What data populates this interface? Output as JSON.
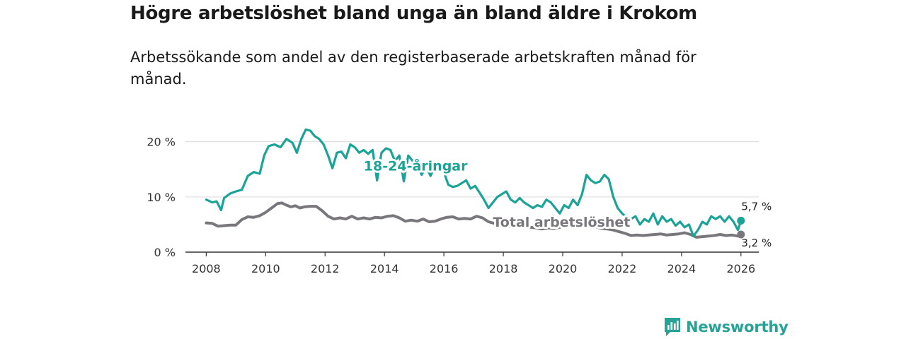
{
  "title": "Högre arbetslöshet bland unga än bland äldre i Krokom",
  "subtitle": "Arbetssökande som andel av den registerbaserade arbetskraften månad för månad.",
  "brand": {
    "name": "Newsworthy",
    "logo_icon": "newsworthy-logo-icon"
  },
  "colors": {
    "youth": "#1aa397",
    "total": "#7a777c",
    "grid": "#d9d9d9",
    "axis": "#333333"
  },
  "chart_data": {
    "type": "line",
    "title": "Högre arbetslöshet bland unga än bland äldre i Krokom",
    "xlabel": "",
    "ylabel": "",
    "xlim": [
      2007.3,
      2026.6
    ],
    "ylim": [
      0,
      22
    ],
    "x_ticks": [
      2008,
      2010,
      2012,
      2014,
      2016,
      2018,
      2020,
      2022,
      2024,
      2026
    ],
    "x_tick_labels": [
      "2008",
      "2010",
      "2012",
      "2014",
      "2016",
      "2018",
      "2020",
      "2022",
      "2024",
      "2026"
    ],
    "y_ticks": [
      0,
      10,
      20
    ],
    "y_tick_labels": [
      "0 %",
      "10 %",
      "20 %"
    ],
    "grid": true,
    "series": [
      {
        "name": "18-24-åringar",
        "label": "18-24-åringar",
        "end_label": "5,7 %",
        "points": [
          [
            2008.0,
            9.5
          ],
          [
            2008.2,
            9.0
          ],
          [
            2008.35,
            9.2
          ],
          [
            2008.5,
            7.6
          ],
          [
            2008.6,
            9.8
          ],
          [
            2008.8,
            10.6
          ],
          [
            2009.0,
            11.0
          ],
          [
            2009.2,
            11.3
          ],
          [
            2009.4,
            13.8
          ],
          [
            2009.6,
            14.5
          ],
          [
            2009.8,
            14.2
          ],
          [
            2009.95,
            17.5
          ],
          [
            2010.1,
            19.2
          ],
          [
            2010.3,
            19.5
          ],
          [
            2010.5,
            19.0
          ],
          [
            2010.7,
            20.5
          ],
          [
            2010.9,
            19.8
          ],
          [
            2011.05,
            18.0
          ],
          [
            2011.2,
            20.5
          ],
          [
            2011.35,
            22.2
          ],
          [
            2011.5,
            22.0
          ],
          [
            2011.65,
            21.0
          ],
          [
            2011.8,
            20.5
          ],
          [
            2011.95,
            19.5
          ],
          [
            2012.1,
            17.5
          ],
          [
            2012.25,
            15.2
          ],
          [
            2012.4,
            18.0
          ],
          [
            2012.55,
            18.2
          ],
          [
            2012.7,
            17.0
          ],
          [
            2012.85,
            19.5
          ],
          [
            2013.0,
            19.0
          ],
          [
            2013.15,
            18.0
          ],
          [
            2013.3,
            18.5
          ],
          [
            2013.45,
            17.8
          ],
          [
            2013.6,
            18.5
          ],
          [
            2013.75,
            13.0
          ],
          [
            2013.9,
            18.0
          ],
          [
            2014.05,
            18.8
          ],
          [
            2014.2,
            18.5
          ],
          [
            2014.35,
            16.5
          ],
          [
            2014.5,
            17.5
          ],
          [
            2014.65,
            12.8
          ],
          [
            2014.8,
            17.5
          ],
          [
            2014.95,
            16.5
          ],
          [
            2015.1,
            16.0
          ],
          [
            2015.25,
            14.0
          ],
          [
            2015.4,
            15.5
          ],
          [
            2015.55,
            13.8
          ],
          [
            2015.7,
            15.8
          ],
          [
            2015.85,
            15.0
          ],
          [
            2016.0,
            14.5
          ],
          [
            2016.15,
            12.2
          ],
          [
            2016.3,
            11.8
          ],
          [
            2016.45,
            12.0
          ],
          [
            2016.6,
            12.5
          ],
          [
            2016.75,
            13.0
          ],
          [
            2016.9,
            11.5
          ],
          [
            2017.05,
            12.0
          ],
          [
            2017.2,
            10.8
          ],
          [
            2017.35,
            9.5
          ],
          [
            2017.5,
            8.0
          ],
          [
            2017.65,
            9.0
          ],
          [
            2017.8,
            10.0
          ],
          [
            2017.95,
            10.5
          ],
          [
            2018.1,
            11.0
          ],
          [
            2018.25,
            9.5
          ],
          [
            2018.4,
            9.0
          ],
          [
            2018.55,
            9.8
          ],
          [
            2018.7,
            9.0
          ],
          [
            2018.85,
            8.5
          ],
          [
            2019.0,
            8.0
          ],
          [
            2019.15,
            8.5
          ],
          [
            2019.3,
            8.2
          ],
          [
            2019.45,
            9.5
          ],
          [
            2019.6,
            9.0
          ],
          [
            2019.75,
            8.0
          ],
          [
            2019.9,
            7.0
          ],
          [
            2020.05,
            8.5
          ],
          [
            2020.2,
            8.0
          ],
          [
            2020.35,
            9.5
          ],
          [
            2020.5,
            8.5
          ],
          [
            2020.65,
            10.5
          ],
          [
            2020.8,
            14.0
          ],
          [
            2020.95,
            13.0
          ],
          [
            2021.1,
            12.5
          ],
          [
            2021.25,
            12.8
          ],
          [
            2021.4,
            14.0
          ],
          [
            2021.55,
            13.2
          ],
          [
            2021.7,
            10.0
          ],
          [
            2021.85,
            8.0
          ],
          [
            2022.0,
            7.0
          ],
          [
            2022.15,
            6.3
          ],
          [
            2022.3,
            6.0
          ],
          [
            2022.45,
            6.5
          ],
          [
            2022.6,
            5.0
          ],
          [
            2022.75,
            6.0
          ],
          [
            2022.9,
            5.5
          ],
          [
            2023.05,
            7.0
          ],
          [
            2023.2,
            5.0
          ],
          [
            2023.35,
            6.5
          ],
          [
            2023.5,
            5.5
          ],
          [
            2023.65,
            6.0
          ],
          [
            2023.8,
            4.8
          ],
          [
            2023.95,
            5.5
          ],
          [
            2024.1,
            4.5
          ],
          [
            2024.25,
            5.0
          ],
          [
            2024.4,
            2.9
          ],
          [
            2024.55,
            4.0
          ],
          [
            2024.7,
            5.5
          ],
          [
            2024.85,
            5.0
          ],
          [
            2025.0,
            6.5
          ],
          [
            2025.15,
            6.0
          ],
          [
            2025.3,
            6.5
          ],
          [
            2025.45,
            5.5
          ],
          [
            2025.6,
            6.5
          ],
          [
            2025.75,
            5.5
          ],
          [
            2025.9,
            4.0
          ],
          [
            2026.0,
            5.7
          ]
        ]
      },
      {
        "name": "Total arbetslöshet",
        "label": "Total arbetslöshet",
        "end_label": "3,2 %",
        "points": [
          [
            2008.0,
            5.3
          ],
          [
            2008.2,
            5.2
          ],
          [
            2008.4,
            4.7
          ],
          [
            2008.6,
            4.8
          ],
          [
            2008.8,
            4.9
          ],
          [
            2009.0,
            4.9
          ],
          [
            2009.2,
            5.9
          ],
          [
            2009.4,
            6.4
          ],
          [
            2009.6,
            6.3
          ],
          [
            2009.8,
            6.6
          ],
          [
            2010.0,
            7.2
          ],
          [
            2010.2,
            8.0
          ],
          [
            2010.4,
            8.8
          ],
          [
            2010.55,
            8.9
          ],
          [
            2010.7,
            8.5
          ],
          [
            2010.85,
            8.2
          ],
          [
            2011.0,
            8.4
          ],
          [
            2011.15,
            8.0
          ],
          [
            2011.3,
            8.2
          ],
          [
            2011.5,
            8.3
          ],
          [
            2011.7,
            8.3
          ],
          [
            2011.9,
            7.5
          ],
          [
            2012.1,
            6.5
          ],
          [
            2012.3,
            6.0
          ],
          [
            2012.5,
            6.2
          ],
          [
            2012.7,
            6.0
          ],
          [
            2012.9,
            6.5
          ],
          [
            2013.1,
            6.0
          ],
          [
            2013.3,
            6.2
          ],
          [
            2013.5,
            6.0
          ],
          [
            2013.7,
            6.3
          ],
          [
            2013.9,
            6.2
          ],
          [
            2014.1,
            6.5
          ],
          [
            2014.3,
            6.6
          ],
          [
            2014.5,
            6.2
          ],
          [
            2014.7,
            5.6
          ],
          [
            2014.9,
            5.8
          ],
          [
            2015.1,
            5.6
          ],
          [
            2015.3,
            6.0
          ],
          [
            2015.5,
            5.5
          ],
          [
            2015.7,
            5.6
          ],
          [
            2015.9,
            6.0
          ],
          [
            2016.1,
            6.3
          ],
          [
            2016.3,
            6.4
          ],
          [
            2016.5,
            6.0
          ],
          [
            2016.7,
            6.1
          ],
          [
            2016.9,
            6.0
          ],
          [
            2017.1,
            6.5
          ],
          [
            2017.3,
            6.2
          ],
          [
            2017.5,
            5.5
          ],
          [
            2017.7,
            5.2
          ],
          [
            2017.9,
            5.0
          ],
          [
            2018.1,
            4.8
          ],
          [
            2018.3,
            4.6
          ],
          [
            2018.5,
            4.5
          ],
          [
            2018.7,
            4.6
          ],
          [
            2018.9,
            4.5
          ],
          [
            2019.1,
            4.4
          ],
          [
            2019.3,
            4.2
          ],
          [
            2019.5,
            4.4
          ],
          [
            2019.7,
            4.3
          ],
          [
            2019.9,
            4.5
          ],
          [
            2020.1,
            4.8
          ],
          [
            2020.3,
            5.2
          ],
          [
            2020.5,
            5.5
          ],
          [
            2020.7,
            5.4
          ],
          [
            2020.9,
            5.0
          ],
          [
            2021.1,
            4.6
          ],
          [
            2021.3,
            4.3
          ],
          [
            2021.5,
            4.2
          ],
          [
            2021.7,
            4.0
          ],
          [
            2021.9,
            3.7
          ],
          [
            2022.1,
            3.4
          ],
          [
            2022.3,
            3.0
          ],
          [
            2022.5,
            3.1
          ],
          [
            2022.7,
            3.0
          ],
          [
            2022.9,
            3.1
          ],
          [
            2023.1,
            3.2
          ],
          [
            2023.3,
            3.3
          ],
          [
            2023.5,
            3.1
          ],
          [
            2023.7,
            3.2
          ],
          [
            2023.9,
            3.3
          ],
          [
            2024.1,
            3.5
          ],
          [
            2024.3,
            3.2
          ],
          [
            2024.5,
            2.7
          ],
          [
            2024.7,
            2.8
          ],
          [
            2024.9,
            2.9
          ],
          [
            2025.1,
            3.0
          ],
          [
            2025.3,
            3.2
          ],
          [
            2025.5,
            3.0
          ],
          [
            2025.7,
            3.1
          ],
          [
            2025.9,
            2.9
          ],
          [
            2026.0,
            3.2
          ]
        ]
      }
    ]
  }
}
